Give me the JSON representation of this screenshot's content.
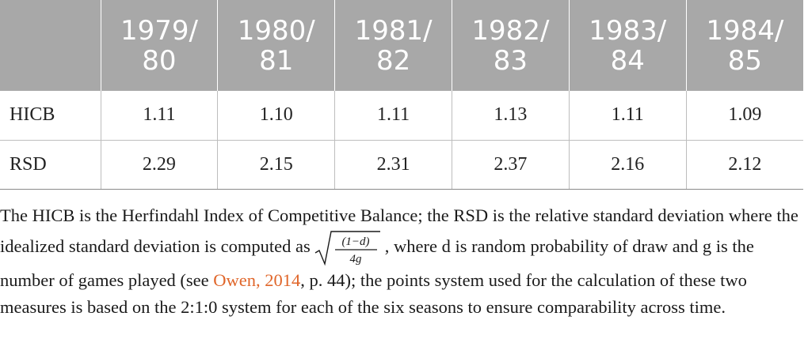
{
  "table": {
    "header": [
      {
        "l1": "",
        "l2": ""
      },
      {
        "l1": "1979/",
        "l2": "80"
      },
      {
        "l1": "1980/",
        "l2": "81"
      },
      {
        "l1": "1981/",
        "l2": "82"
      },
      {
        "l1": "1982/",
        "l2": "83"
      },
      {
        "l1": "1983/",
        "l2": "84"
      },
      {
        "l1": "1984/",
        "l2": "85"
      }
    ],
    "rows": [
      {
        "label": "HICB",
        "values": [
          "1.11",
          "1.10",
          "1.11",
          "1.13",
          "1.11",
          "1.09"
        ]
      },
      {
        "label": "RSD",
        "values": [
          "2.29",
          "2.15",
          "2.31",
          "2.37",
          "2.16",
          "2.12"
        ]
      }
    ]
  },
  "note": {
    "part1": "The HICB is the Herfindahl Index of Competitive Balance; the RSD is the relative standard deviation where the idealized standard deviation is computed as",
    "formula_num": "(1−d)",
    "formula_den": "4g",
    "part2": ", where d is random probability of draw and g is the number of games played (see",
    "citation": "Owen, 2014",
    "part3": ", p. 44); the points system used for the calculation of these two measures is based on the 2:1:0 system for each of the six seasons to ensure comparability across time."
  }
}
